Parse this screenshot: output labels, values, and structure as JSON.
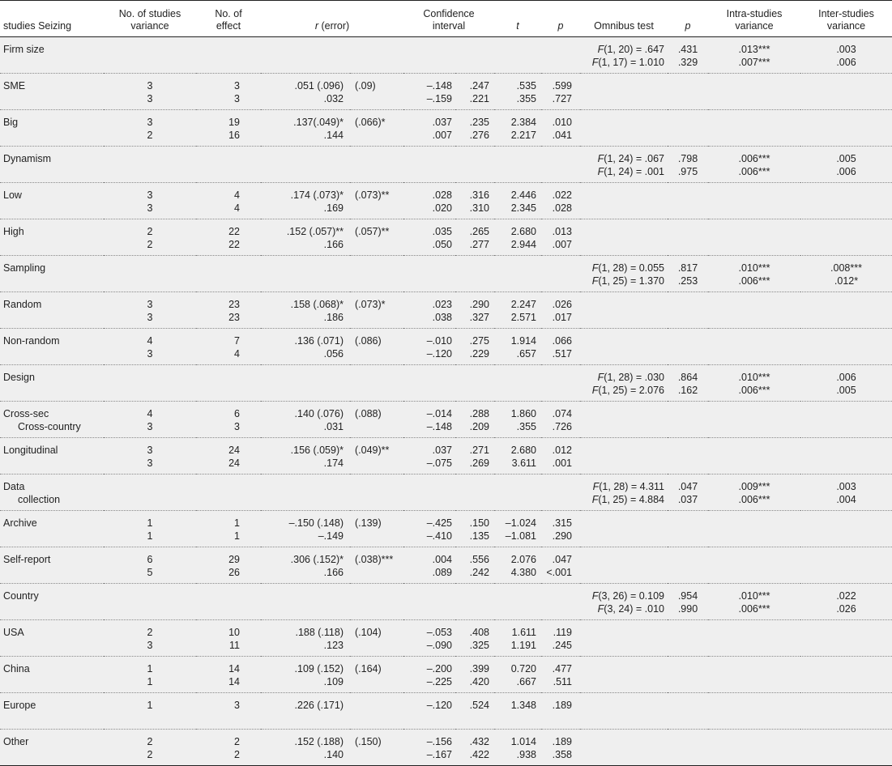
{
  "headers": {
    "h1": "studies Seizing",
    "h2a": "No. of studies",
    "h2b": "variance",
    "h3a": "No. of",
    "h3b": "effect",
    "h4_r": "r",
    "h4_rest": " (error)",
    "h5a": "Confidence",
    "h5b": "interval",
    "h6": "t",
    "h7": "p",
    "h8": "Omnibus test",
    "h9": "p",
    "h10a": "Intra-studies",
    "h10b": "variance",
    "h11a": "Inter-studies",
    "h11b": "variance"
  },
  "rows": [
    {
      "name": [
        "Firm size"
      ],
      "studies": [
        "",
        ""
      ],
      "effect": [
        "",
        ""
      ],
      "r": [
        "",
        ""
      ],
      "err": [
        "",
        ""
      ],
      "ci_lo": [
        "",
        ""
      ],
      "ci_hi": [
        "",
        ""
      ],
      "t": [
        "",
        ""
      ],
      "p": [
        "",
        ""
      ],
      "omni": [
        {
          "f": "F",
          "rest": "(1, 20) = .647"
        },
        {
          "f": "F",
          "rest": "(1, 17) = 1.010"
        }
      ],
      "op": [
        ".431",
        ".329"
      ],
      "intra": [
        ".013***",
        ".007***"
      ],
      "inter": [
        ".003",
        ".006"
      ]
    },
    {
      "name": [
        "SME"
      ],
      "studies": [
        "3",
        "3"
      ],
      "effect": [
        "3",
        "3"
      ],
      "r": [
        ".051 (.096)",
        ".032"
      ],
      "err": [
        "(.09)",
        ""
      ],
      "ci_lo": [
        "–.148",
        "–.159"
      ],
      "ci_hi": [
        ".247",
        ".221"
      ],
      "t": [
        ".535",
        ".355"
      ],
      "p": [
        ".599",
        ".727"
      ],
      "omni": [
        {
          "f": "",
          "rest": ""
        },
        {
          "f": "",
          "rest": ""
        }
      ],
      "op": [
        "",
        ""
      ],
      "intra": [
        "",
        ""
      ],
      "inter": [
        "",
        ""
      ]
    },
    {
      "name": [
        "Big"
      ],
      "studies": [
        "3",
        "2"
      ],
      "effect": [
        "19",
        "16"
      ],
      "r": [
        ".137(.049)*",
        ".144"
      ],
      "err": [
        "(.066)*",
        ""
      ],
      "ci_lo": [
        ".037",
        ".007"
      ],
      "ci_hi": [
        ".235",
        ".276"
      ],
      "t": [
        "2.384",
        "2.217"
      ],
      "p": [
        ".010",
        ".041"
      ],
      "omni": [
        {
          "f": "",
          "rest": ""
        },
        {
          "f": "",
          "rest": ""
        }
      ],
      "op": [
        "",
        ""
      ],
      "intra": [
        "",
        ""
      ],
      "inter": [
        "",
        ""
      ]
    },
    {
      "name": [
        "Dynamism"
      ],
      "studies": [
        "",
        ""
      ],
      "effect": [
        "",
        ""
      ],
      "r": [
        "",
        ""
      ],
      "err": [
        "",
        ""
      ],
      "ci_lo": [
        "",
        ""
      ],
      "ci_hi": [
        "",
        ""
      ],
      "t": [
        "",
        ""
      ],
      "p": [
        "",
        ""
      ],
      "omni": [
        {
          "f": "F",
          "rest": "(1, 24) = .067"
        },
        {
          "f": "F",
          "rest": "(1, 24) = .001"
        }
      ],
      "op": [
        ".798",
        ".975"
      ],
      "intra": [
        ".006***",
        ".006***"
      ],
      "inter": [
        ".005",
        ".006"
      ]
    },
    {
      "name": [
        "Low"
      ],
      "studies": [
        "3",
        "3"
      ],
      "effect": [
        "4",
        "4"
      ],
      "r": [
        ".174 (.073)*",
        ".169"
      ],
      "err": [
        "(.073)**",
        ""
      ],
      "ci_lo": [
        ".028",
        ".020"
      ],
      "ci_hi": [
        ".316",
        ".310"
      ],
      "t": [
        "2.446",
        "2.345"
      ],
      "p": [
        ".022",
        ".028"
      ],
      "omni": [
        {
          "f": "",
          "rest": ""
        },
        {
          "f": "",
          "rest": ""
        }
      ],
      "op": [
        "",
        ""
      ],
      "intra": [
        "",
        ""
      ],
      "inter": [
        "",
        ""
      ]
    },
    {
      "name": [
        "High"
      ],
      "studies": [
        "2",
        "2"
      ],
      "effect": [
        "22",
        "22"
      ],
      "r": [
        ".152 (.057)**",
        ".166"
      ],
      "err": [
        "(.057)**",
        ""
      ],
      "ci_lo": [
        ".035",
        ".050"
      ],
      "ci_hi": [
        ".265",
        ".277"
      ],
      "t": [
        "2.680",
        "2.944"
      ],
      "p": [
        ".013",
        ".007"
      ],
      "omni": [
        {
          "f": "",
          "rest": ""
        },
        {
          "f": "",
          "rest": ""
        }
      ],
      "op": [
        "",
        ""
      ],
      "intra": [
        "",
        ""
      ],
      "inter": [
        "",
        ""
      ]
    },
    {
      "name": [
        "Sampling"
      ],
      "studies": [
        "",
        ""
      ],
      "effect": [
        "",
        ""
      ],
      "r": [
        "",
        ""
      ],
      "err": [
        "",
        ""
      ],
      "ci_lo": [
        "",
        ""
      ],
      "ci_hi": [
        "",
        ""
      ],
      "t": [
        "",
        ""
      ],
      "p": [
        "",
        ""
      ],
      "omni": [
        {
          "f": "F",
          "rest": "(1, 28) = 0.055"
        },
        {
          "f": "F",
          "rest": "(1, 25) = 1.370"
        }
      ],
      "op": [
        ".817",
        ".253"
      ],
      "intra": [
        ".010***",
        ".006***"
      ],
      "inter": [
        ".008***",
        ".012*"
      ]
    },
    {
      "name": [
        "Random"
      ],
      "studies": [
        "3",
        "3"
      ],
      "effect": [
        "23",
        "23"
      ],
      "r": [
        ".158 (.068)*",
        ".186"
      ],
      "err": [
        "(.073)*",
        ""
      ],
      "ci_lo": [
        ".023",
        ".038"
      ],
      "ci_hi": [
        ".290",
        ".327"
      ],
      "t": [
        "2.247",
        "2.571"
      ],
      "p": [
        ".026",
        ".017"
      ],
      "omni": [
        {
          "f": "",
          "rest": ""
        },
        {
          "f": "",
          "rest": ""
        }
      ],
      "op": [
        "",
        ""
      ],
      "intra": [
        "",
        ""
      ],
      "inter": [
        "",
        ""
      ]
    },
    {
      "name": [
        "Non-random"
      ],
      "studies": [
        "4",
        "3"
      ],
      "effect": [
        "7",
        "4"
      ],
      "r": [
        ".136 (.071)",
        ".056"
      ],
      "err": [
        "(.086)",
        ""
      ],
      "ci_lo": [
        "–.010",
        "–.120"
      ],
      "ci_hi": [
        ".275",
        ".229"
      ],
      "t": [
        "1.914",
        ".657"
      ],
      "p": [
        ".066",
        ".517"
      ],
      "omni": [
        {
          "f": "",
          "rest": ""
        },
        {
          "f": "",
          "rest": ""
        }
      ],
      "op": [
        "",
        ""
      ],
      "intra": [
        "",
        ""
      ],
      "inter": [
        "",
        ""
      ]
    },
    {
      "name": [
        "Design"
      ],
      "studies": [
        "",
        ""
      ],
      "effect": [
        "",
        ""
      ],
      "r": [
        "",
        ""
      ],
      "err": [
        "",
        ""
      ],
      "ci_lo": [
        "",
        ""
      ],
      "ci_hi": [
        "",
        ""
      ],
      "t": [
        "",
        ""
      ],
      "p": [
        "",
        ""
      ],
      "omni": [
        {
          "f": "F",
          "rest": "(1, 28) = .030"
        },
        {
          "f": "F",
          "rest": "(1, 25) = 2.076"
        }
      ],
      "op": [
        ".864",
        ".162"
      ],
      "intra": [
        ".010***",
        ".006***"
      ],
      "inter": [
        ".006",
        ".005"
      ]
    },
    {
      "name": [
        "Cross-sec",
        "Cross-country"
      ],
      "studies": [
        "4",
        "3"
      ],
      "effect": [
        "6",
        "3"
      ],
      "r": [
        ".140 (.076)",
        ".031"
      ],
      "err": [
        "(.088)",
        ""
      ],
      "ci_lo": [
        "–.014",
        "–.148"
      ],
      "ci_hi": [
        ".288",
        ".209"
      ],
      "t": [
        "1.860",
        ".355"
      ],
      "p": [
        ".074",
        ".726"
      ],
      "omni": [
        {
          "f": "",
          "rest": ""
        },
        {
          "f": "",
          "rest": ""
        }
      ],
      "op": [
        "",
        ""
      ],
      "intra": [
        "",
        ""
      ],
      "inter": [
        "",
        ""
      ]
    },
    {
      "name": [
        "Longitudinal"
      ],
      "studies": [
        "3",
        "3"
      ],
      "effect": [
        "24",
        "24"
      ],
      "r": [
        ".156 (.059)*",
        ".174"
      ],
      "err": [
        "(.049)**",
        ""
      ],
      "ci_lo": [
        ".037",
        "–.075"
      ],
      "ci_hi": [
        ".271",
        ".269"
      ],
      "t": [
        "2.680",
        "3.611"
      ],
      "p": [
        ".012",
        ".001"
      ],
      "omni": [
        {
          "f": "",
          "rest": ""
        },
        {
          "f": "",
          "rest": ""
        }
      ],
      "op": [
        "",
        ""
      ],
      "intra": [
        "",
        ""
      ],
      "inter": [
        "",
        ""
      ]
    },
    {
      "name": [
        "Data",
        "collection"
      ],
      "studies": [
        "",
        ""
      ],
      "effect": [
        "",
        ""
      ],
      "r": [
        "",
        ""
      ],
      "err": [
        "",
        ""
      ],
      "ci_lo": [
        "",
        ""
      ],
      "ci_hi": [
        "",
        ""
      ],
      "t": [
        "",
        ""
      ],
      "p": [
        "",
        ""
      ],
      "omni": [
        {
          "f": "F",
          "rest": "(1, 28) = 4.311"
        },
        {
          "f": "F",
          "rest": "(1, 25) = 4.884"
        }
      ],
      "op": [
        ".047",
        ".037"
      ],
      "intra": [
        ".009***",
        ".006***"
      ],
      "inter": [
        ".003",
        ".004"
      ]
    },
    {
      "name": [
        "Archive"
      ],
      "studies": [
        "1",
        "1"
      ],
      "effect": [
        "1",
        "1"
      ],
      "r": [
        "–.150 (.148)",
        "–.149"
      ],
      "err": [
        "(.139)",
        ""
      ],
      "ci_lo": [
        "–.425",
        "–.410"
      ],
      "ci_hi": [
        ".150",
        ".135"
      ],
      "t": [
        "–1.024",
        "–1.081"
      ],
      "p": [
        ".315",
        ".290"
      ],
      "omni": [
        {
          "f": "",
          "rest": ""
        },
        {
          "f": "",
          "rest": ""
        }
      ],
      "op": [
        "",
        ""
      ],
      "intra": [
        "",
        ""
      ],
      "inter": [
        "",
        ""
      ]
    },
    {
      "name": [
        "Self-report"
      ],
      "studies": [
        "6",
        "5"
      ],
      "effect": [
        "29",
        "26"
      ],
      "r": [
        ".306 (.152)*",
        ".166"
      ],
      "err": [
        "(.038)***",
        ""
      ],
      "ci_lo": [
        ".004",
        ".089"
      ],
      "ci_hi": [
        ".556",
        ".242"
      ],
      "t": [
        "2.076",
        "4.380"
      ],
      "p": [
        ".047",
        "<.001"
      ],
      "omni": [
        {
          "f": "",
          "rest": ""
        },
        {
          "f": "",
          "rest": ""
        }
      ],
      "op": [
        "",
        ""
      ],
      "intra": [
        "",
        ""
      ],
      "inter": [
        "",
        ""
      ]
    },
    {
      "name": [
        "Country"
      ],
      "studies": [
        "",
        ""
      ],
      "effect": [
        "",
        ""
      ],
      "r": [
        "",
        ""
      ],
      "err": [
        "",
        ""
      ],
      "ci_lo": [
        "",
        ""
      ],
      "ci_hi": [
        "",
        ""
      ],
      "t": [
        "",
        ""
      ],
      "p": [
        "",
        ""
      ],
      "omni": [
        {
          "f": "F",
          "rest": "(3, 26) = 0.109"
        },
        {
          "f": "F",
          "rest": "(3, 24) = .010"
        }
      ],
      "op": [
        ".954",
        ".990"
      ],
      "intra": [
        ".010***",
        ".006***"
      ],
      "inter": [
        ".022",
        ".026"
      ]
    },
    {
      "name": [
        "USA"
      ],
      "studies": [
        "2",
        "3"
      ],
      "effect": [
        "10",
        "11"
      ],
      "r": [
        ".188 (.118)",
        ".123"
      ],
      "err": [
        "(.104)",
        ""
      ],
      "ci_lo": [
        "–.053",
        "–.090"
      ],
      "ci_hi": [
        ".408",
        ".325"
      ],
      "t": [
        "1.611",
        "1.191"
      ],
      "p": [
        ".119",
        ".245"
      ],
      "omni": [
        {
          "f": "",
          "rest": ""
        },
        {
          "f": "",
          "rest": ""
        }
      ],
      "op": [
        "",
        ""
      ],
      "intra": [
        "",
        ""
      ],
      "inter": [
        "",
        ""
      ]
    },
    {
      "name": [
        "China"
      ],
      "studies": [
        "1",
        "1"
      ],
      "effect": [
        "14",
        "14"
      ],
      "r": [
        ".109 (.152)",
        ".109"
      ],
      "err": [
        "(.164)",
        ""
      ],
      "ci_lo": [
        "–.200",
        "–.225"
      ],
      "ci_hi": [
        ".399",
        ".420"
      ],
      "t": [
        "0.720",
        ".667"
      ],
      "p": [
        ".477",
        ".511"
      ],
      "omni": [
        {
          "f": "",
          "rest": ""
        },
        {
          "f": "",
          "rest": ""
        }
      ],
      "op": [
        "",
        ""
      ],
      "intra": [
        "",
        ""
      ],
      "inter": [
        "",
        ""
      ]
    },
    {
      "name": [
        "Europe"
      ],
      "studies": [
        "1"
      ],
      "effect": [
        "3"
      ],
      "r": [
        ".226 (.171)"
      ],
      "err": [
        ""
      ],
      "ci_lo": [
        "–.120"
      ],
      "ci_hi": [
        ".524"
      ],
      "t": [
        "1.348"
      ],
      "p": [
        ".189"
      ],
      "omni": [
        {
          "f": "",
          "rest": ""
        }
      ],
      "op": [
        ""
      ],
      "intra": [
        ""
      ],
      "inter": [
        ""
      ]
    },
    {
      "name": [
        "Other"
      ],
      "studies": [
        "2",
        "2"
      ],
      "effect": [
        "2",
        "2"
      ],
      "r": [
        ".152 (.188)",
        ".140"
      ],
      "err": [
        "(.150)",
        ""
      ],
      "ci_lo": [
        "–.156",
        "–.167"
      ],
      "ci_hi": [
        ".432",
        ".422"
      ],
      "t": [
        "1.014",
        ".938"
      ],
      "p": [
        ".189",
        ".358"
      ],
      "omni": [
        {
          "f": "",
          "rest": ""
        },
        {
          "f": "",
          "rest": ""
        }
      ],
      "op": [
        "",
        ""
      ],
      "intra": [
        "",
        ""
      ],
      "inter": [
        "",
        ""
      ]
    }
  ]
}
